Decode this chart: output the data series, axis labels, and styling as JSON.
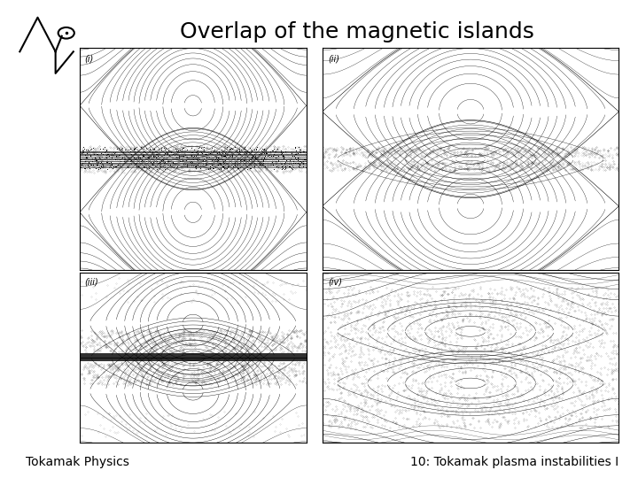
{
  "title": "Overlap of the magnetic islands",
  "footer_left": "Tokamak Physics",
  "footer_right": "10: Tokamak plasma instabilities I",
  "background_color": "#ffffff",
  "panel_labels": [
    "(i)",
    "(ii)",
    "(iii)",
    "(iv)"
  ],
  "title_fontsize": 18,
  "footer_fontsize": 10,
  "panel_label_fontsize": 7,
  "fig_width": 7.2,
  "fig_height": 5.4
}
